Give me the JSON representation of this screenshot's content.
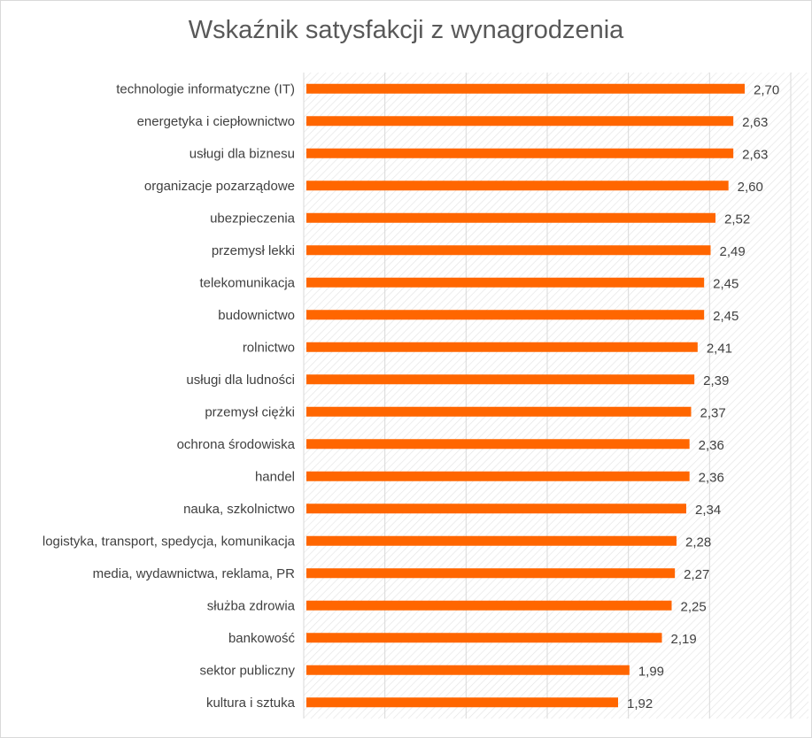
{
  "chart_data": {
    "type": "bar",
    "orientation": "horizontal",
    "title": "Wskaźnik satysfakcji z wynagrodzenia",
    "categories": [
      "technologie informatyczne (IT)",
      "energetyka i ciepłownictwo",
      "usługi dla biznesu",
      "organizacje pozarządowe",
      "ubezpieczenia",
      "przemysł lekki",
      "telekomunikacja",
      "budownictwo",
      "rolnictwo",
      "usługi dla ludności",
      "przemysł ciężki",
      "ochrona środowiska",
      "handel",
      "nauka, szkolnictwo",
      "logistyka, transport, spedycja, komunikacja",
      "media, wydawnictwa, reklama, PR",
      "służba zdrowia",
      "bankowość",
      "sektor publiczny",
      "kultura i sztuka"
    ],
    "values": [
      2.7,
      2.63,
      2.63,
      2.6,
      2.52,
      2.49,
      2.45,
      2.45,
      2.41,
      2.39,
      2.37,
      2.36,
      2.36,
      2.34,
      2.28,
      2.27,
      2.25,
      2.19,
      1.99,
      1.92
    ],
    "value_labels": [
      "2,70",
      "2,63",
      "2,63",
      "2,60",
      "2,52",
      "2,49",
      "2,45",
      "2,45",
      "2,41",
      "2,39",
      "2,37",
      "2,36",
      "2,36",
      "2,34",
      "2,28",
      "2,27",
      "2,25",
      "2,19",
      "1,99",
      "1,92"
    ],
    "xlim": [
      0,
      3
    ],
    "x_axis_tick_labels_shown": false,
    "grid": true,
    "legend": "none",
    "colors": {
      "bar": "#ff6600",
      "grid": "#d9d9d9",
      "plot_hatch": "#e3e3e3",
      "text": "#404040",
      "title": "#595959"
    }
  }
}
